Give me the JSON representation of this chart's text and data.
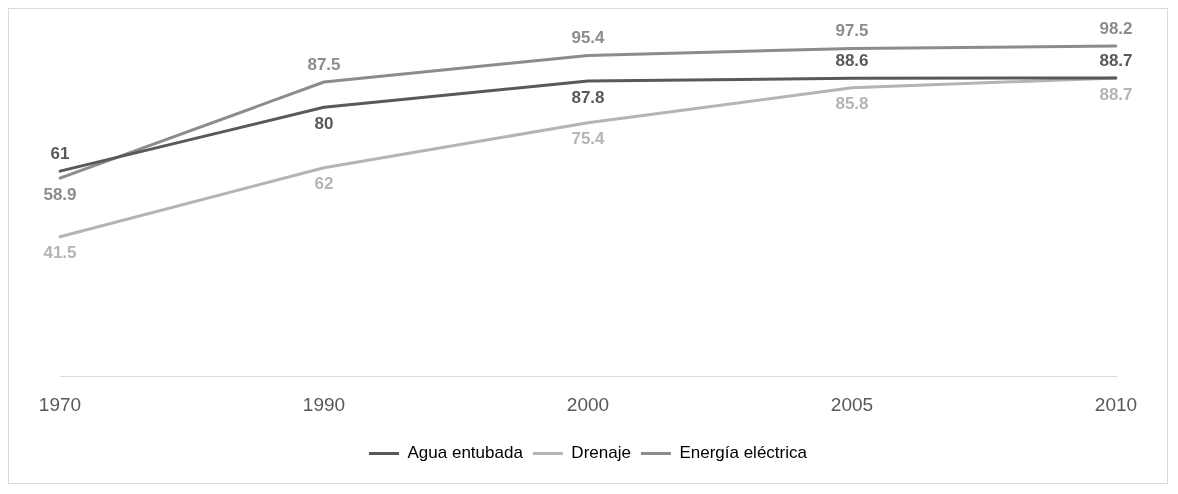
{
  "chart_data": {
    "type": "line",
    "categories": [
      "1970",
      "1990",
      "2000",
      "2005",
      "2010"
    ],
    "series": [
      {
        "name": "Agua entubada",
        "color": "#595959",
        "values": [
          61,
          80,
          87.8,
          88.6,
          88.7
        ]
      },
      {
        "name": "Drenaje",
        "color": "#b4b4b4",
        "values": [
          41.5,
          62,
          75.4,
          85.8,
          88.7
        ]
      },
      {
        "name": "Energía eléctrica",
        "color": "#8c8c8c",
        "values": [
          58.9,
          87.5,
          95.4,
          97.5,
          98.2
        ]
      }
    ],
    "data_labels": true,
    "legend": "bottom",
    "grid": false,
    "marker": "none",
    "line_style": "solid"
  }
}
